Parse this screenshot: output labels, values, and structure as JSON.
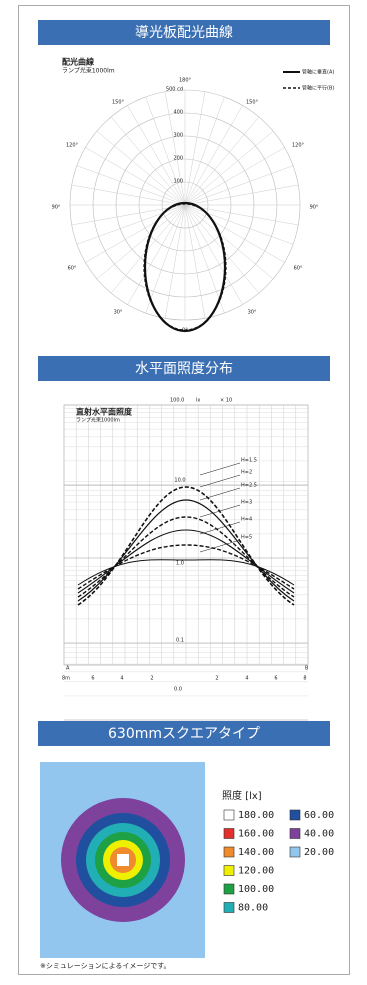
{
  "sections": [
    {
      "title": "導光板配光曲線",
      "chart": {
        "title": "配光曲線",
        "subtitle": "ランプ光束1000lm",
        "legend": [
          "管軸に垂直(A)",
          "管軸に平行(B)"
        ],
        "radial_labels": [
          "500 cd",
          "400",
          "300",
          "200",
          "100"
        ],
        "angle_labels_top": [
          "180°",
          "150°",
          "150°",
          "120°",
          "120°"
        ],
        "angle_labels_side": [
          "90°",
          "90°"
        ],
        "angle_labels_bottom": [
          "60°",
          "60°",
          "30°",
          "30°",
          "0°"
        ]
      }
    },
    {
      "title": "水平面照度分布",
      "chart": {
        "title": "直射水平面照度",
        "subtitle": "ランプ光束1000lm",
        "top_labels": [
          "100.0",
          "lx",
          "× 10"
        ],
        "curve_labels": [
          "H=1.5",
          "H=2",
          "H=2.5",
          "H=3",
          "H=4",
          "H=5"
        ],
        "y_labels": [
          "10.0",
          "1.0",
          "0.1",
          "0.0"
        ],
        "end_labels": [
          "A",
          "B"
        ],
        "x_labels": [
          "8m",
          "6",
          "4",
          "2",
          "2",
          "4",
          "6",
          "8"
        ]
      }
    },
    {
      "title": "630mmスクエアタイプ",
      "legend_title": "照度 [lx]",
      "legend": [
        {
          "label": "180.00",
          "color": "#ffffff"
        },
        {
          "label": "160.00",
          "color": "#e3302c"
        },
        {
          "label": "140.00",
          "color": "#ef8b2c"
        },
        {
          "label": "120.00",
          "color": "#eef000"
        },
        {
          "label": "100.00",
          "color": "#1ea044"
        },
        {
          "label": "80.00",
          "color": "#22aeb5"
        },
        {
          "label": "60.00",
          "color": "#1f4f9e"
        },
        {
          "label": "40.00",
          "color": "#7e419c"
        },
        {
          "label": "20.00",
          "color": "#92c6ee"
        }
      ],
      "note": "※シミュレーションによるイメージです。"
    }
  ]
}
